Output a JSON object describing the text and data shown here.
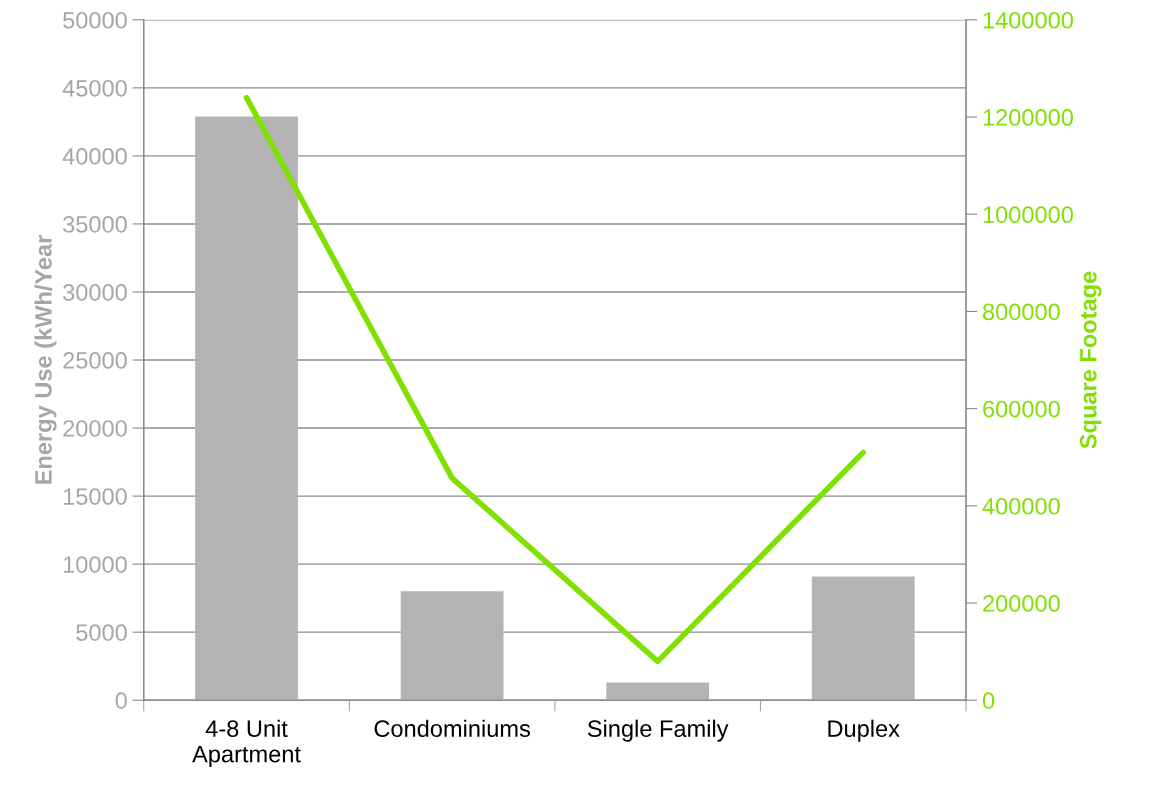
{
  "chart_data": {
    "type": "bar",
    "categories": [
      "4-8 Unit\nApartment",
      "Condominiums",
      "Single Family",
      "Duplex"
    ],
    "ylabel": "Energy Use (kWh/Year",
    "y2label": "Square Footage",
    "series": [
      {
        "color": "#b3b3b3",
        "values": [
          42900,
          8000,
          1300,
          9100
        ]
      },
      {
        "type": "line",
        "axis": "y2",
        "color": "#80e000",
        "values": [
          1240000,
          457000,
          80000,
          510000
        ]
      }
    ],
    "ylim": [
      0,
      50000
    ],
    "yticks": [
      0,
      5000,
      10000,
      15000,
      20000,
      25000,
      30000,
      35000,
      40000,
      45000,
      50000
    ],
    "y2lim": [
      0,
      1400000
    ],
    "y2ticks": [
      0,
      200000,
      400000,
      600000,
      800000,
      1000000,
      1200000,
      1400000
    ],
    "grid": "y",
    "marker": "none",
    "line_style": "solid"
  }
}
